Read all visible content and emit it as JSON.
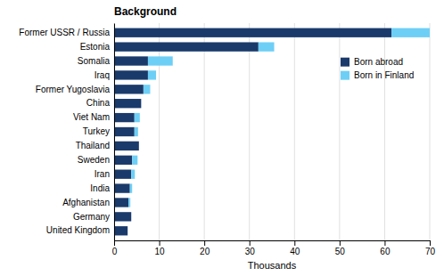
{
  "chart_data": {
    "type": "bar",
    "orientation": "horizontal",
    "stacked": true,
    "title": "Background",
    "xlabel": "Thousands",
    "categories": [
      "United Kingdom",
      "Germany",
      "Afghanistan",
      "India",
      "Iran",
      "Sweden",
      "Thailand",
      "Turkey",
      "Viet Nam",
      "China",
      "Former Yugoslavia",
      "Iraq",
      "Somalia",
      "Estonia",
      "Former USSR / Russia"
    ],
    "series": [
      {
        "name": "Born abroad",
        "color": "#1a3a6b",
        "values": [
          3.0,
          3.8,
          3.2,
          3.5,
          3.8,
          4.0,
          5.5,
          4.5,
          4.5,
          6.0,
          6.5,
          7.5,
          7.5,
          32.0,
          61.5
        ]
      },
      {
        "name": "Born in Finland",
        "color": "#6ecff6",
        "values": [
          0.0,
          0.0,
          0.4,
          0.5,
          0.8,
          1.2,
          0.0,
          0.8,
          1.2,
          0.0,
          1.5,
          1.8,
          5.5,
          3.5,
          8.5
        ]
      }
    ],
    "xlim": [
      0,
      70
    ],
    "xticks": [
      0,
      10,
      20,
      30,
      40,
      50,
      60,
      70
    ],
    "grid": true,
    "legend": "right"
  }
}
